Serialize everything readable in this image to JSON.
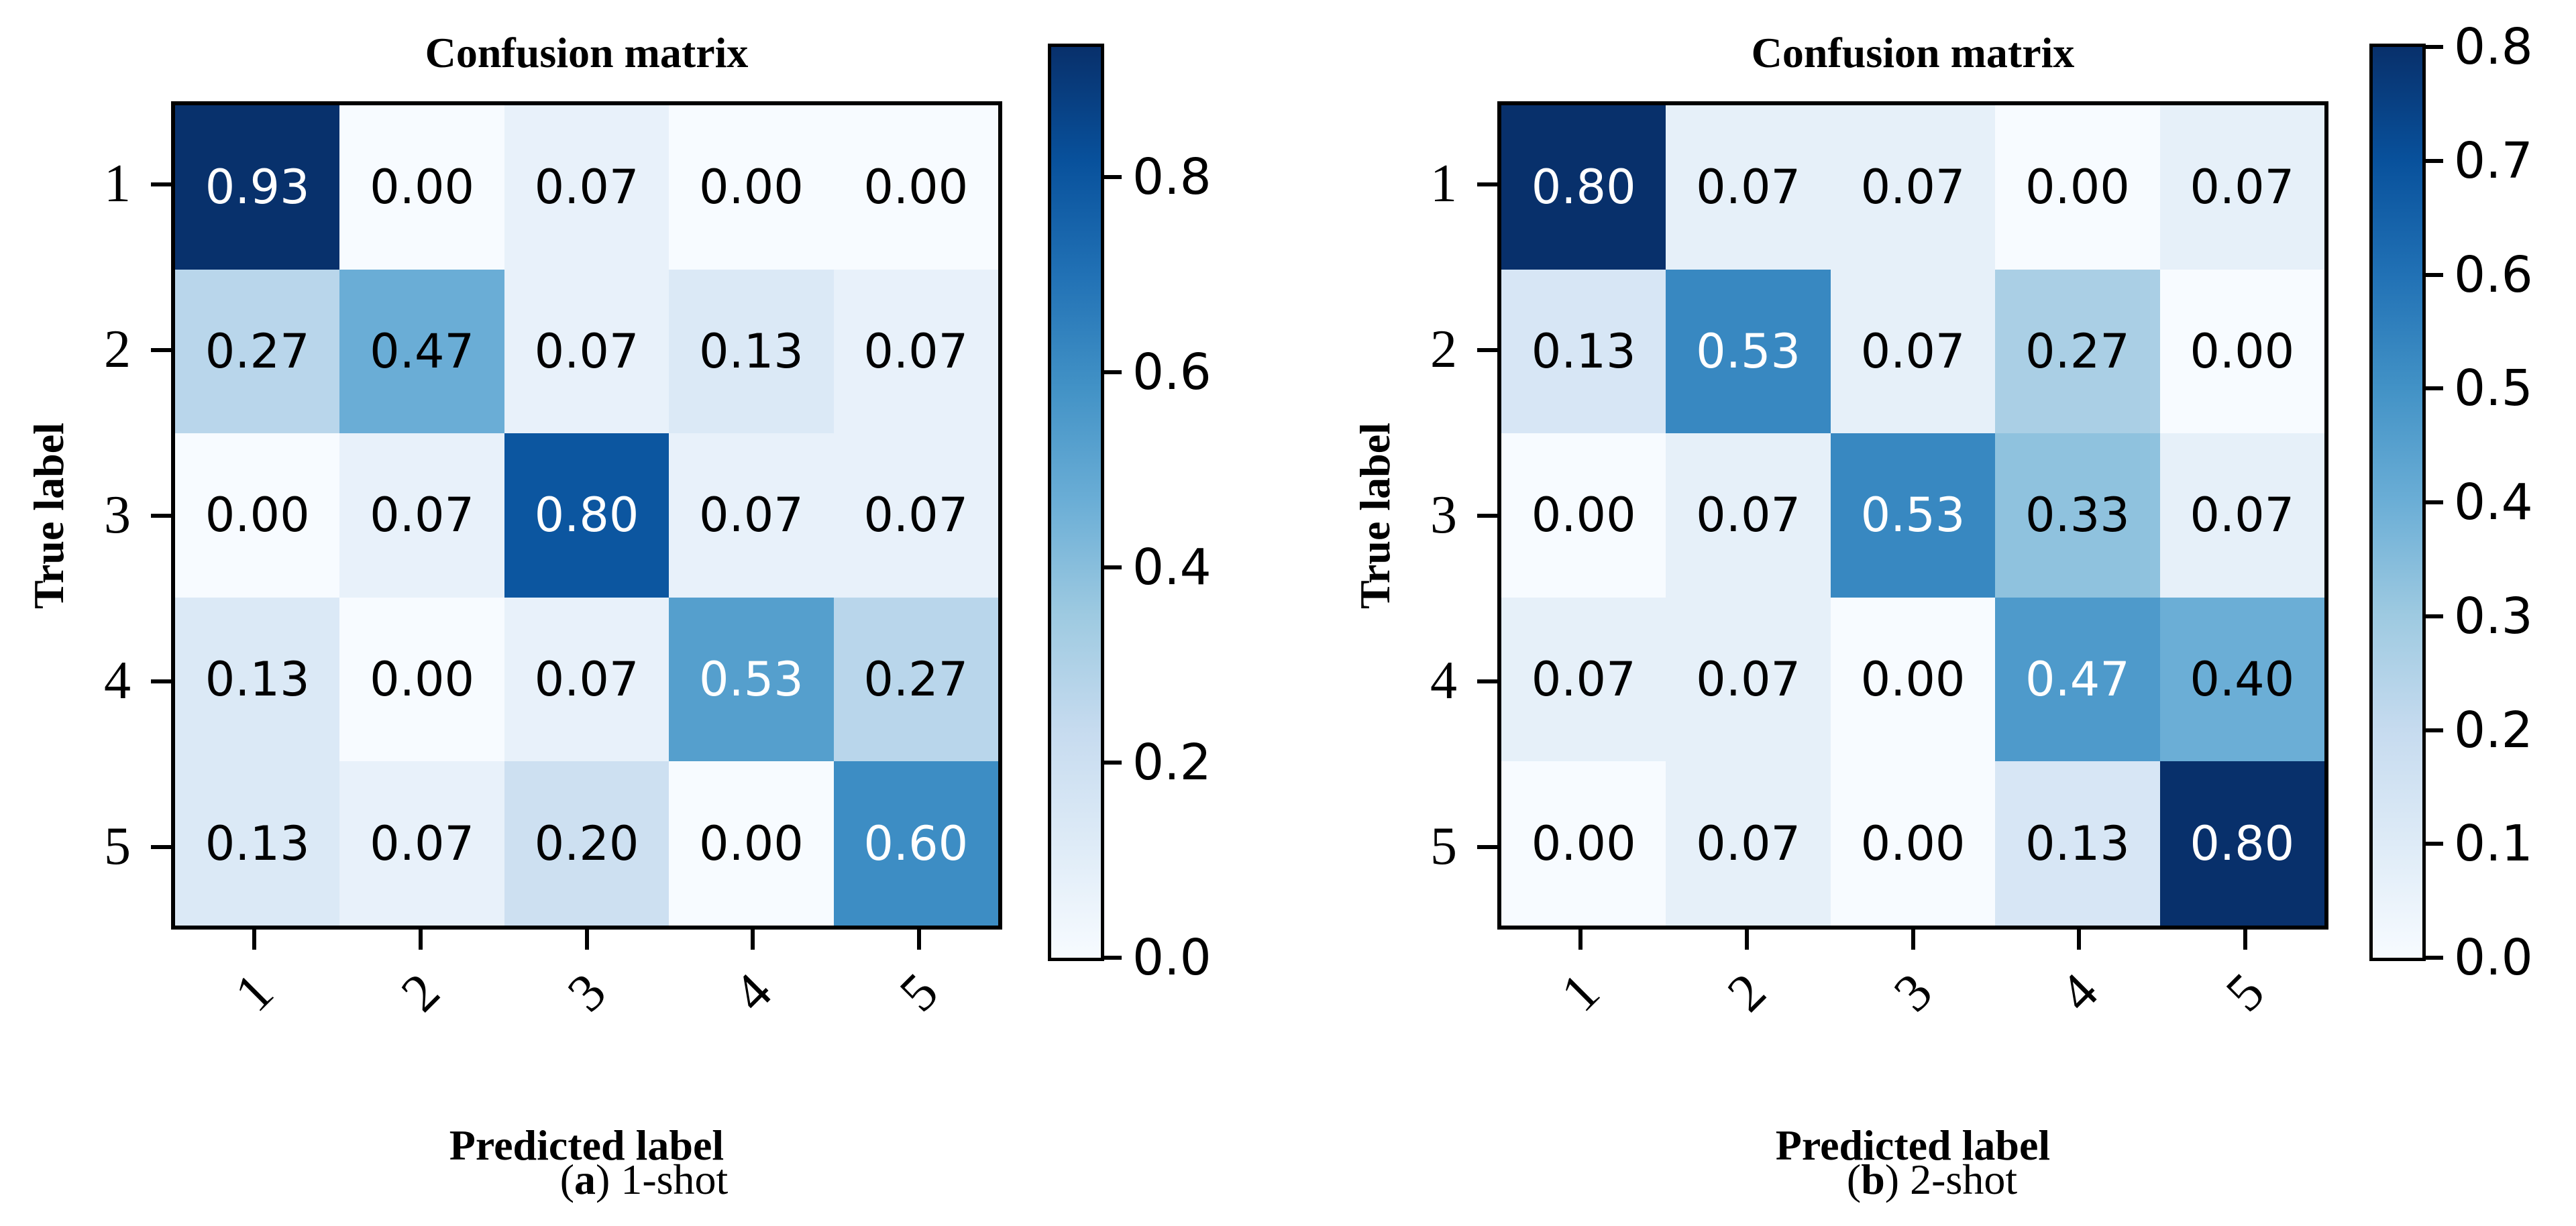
{
  "figure": {
    "background": "#ffffff",
    "axis_color": "#000000",
    "cell_text_dark": "#000000",
    "cell_text_light": "#ffffff",
    "colormap_name": "Blues",
    "colormap_stops": [
      "#f7fbff",
      "#deebf7",
      "#c6dbef",
      "#9ecae1",
      "#6baed6",
      "#4292c6",
      "#2171b5",
      "#08519c",
      "#08306b"
    ]
  },
  "chart_data": [
    {
      "type": "heatmap",
      "panel": "a",
      "title": "Confusion matrix",
      "xlabel": "Predicted label",
      "ylabel": "True label",
      "x_tick_labels": [
        "1",
        "2",
        "3",
        "4",
        "5"
      ],
      "y_tick_labels": [
        "1",
        "2",
        "3",
        "4",
        "5"
      ],
      "values": [
        [
          0.93,
          0.0,
          0.07,
          0.0,
          0.0
        ],
        [
          0.27,
          0.47,
          0.07,
          0.13,
          0.07
        ],
        [
          0.0,
          0.07,
          0.8,
          0.07,
          0.07
        ],
        [
          0.13,
          0.0,
          0.07,
          0.53,
          0.27
        ],
        [
          0.13,
          0.07,
          0.2,
          0.0,
          0.6
        ]
      ],
      "value_format_decimals": 2,
      "vmin": 0.0,
      "vmax": 0.9333,
      "white_text_cells": [
        [
          0,
          0
        ],
        [
          2,
          2
        ],
        [
          3,
          3
        ],
        [
          4,
          4
        ]
      ],
      "colorbar": {
        "tick_labels": [
          "0.8",
          "0.6",
          "0.4",
          "0.2",
          "0.0"
        ],
        "tick_values": [
          0.8,
          0.6,
          0.4,
          0.2,
          0.0
        ]
      },
      "caption": {
        "open": "(",
        "letter": "a",
        "rest": ") 1-shot"
      }
    },
    {
      "type": "heatmap",
      "panel": "b",
      "title": "Confusion matrix",
      "xlabel": "Predicted label",
      "ylabel": "True label",
      "x_tick_labels": [
        "1",
        "2",
        "3",
        "4",
        "5"
      ],
      "y_tick_labels": [
        "1",
        "2",
        "3",
        "4",
        "5"
      ],
      "values": [
        [
          0.8,
          0.07,
          0.07,
          0.0,
          0.07
        ],
        [
          0.13,
          0.53,
          0.07,
          0.27,
          0.0
        ],
        [
          0.0,
          0.07,
          0.53,
          0.33,
          0.07
        ],
        [
          0.07,
          0.07,
          0.0,
          0.47,
          0.4
        ],
        [
          0.0,
          0.07,
          0.0,
          0.13,
          0.8
        ]
      ],
      "value_format_decimals": 2,
      "vmin": 0.0,
      "vmax": 0.8,
      "white_text_cells": [
        [
          0,
          0
        ],
        [
          1,
          1
        ],
        [
          2,
          2
        ],
        [
          3,
          3
        ],
        [
          4,
          4
        ]
      ],
      "colorbar": {
        "tick_labels": [
          "0.8",
          "0.7",
          "0.6",
          "0.5",
          "0.4",
          "0.3",
          "0.2",
          "0.1",
          "0.0"
        ],
        "tick_values": [
          0.8,
          0.7,
          0.6,
          0.5,
          0.4,
          0.3,
          0.2,
          0.1,
          0.0
        ]
      },
      "caption": {
        "open": "(",
        "letter": "b",
        "rest": ") 2-shot"
      }
    }
  ]
}
